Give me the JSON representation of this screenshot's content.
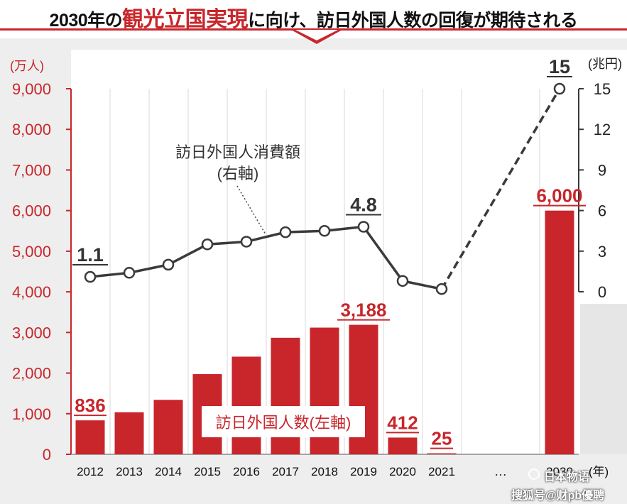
{
  "header": {
    "title_pre": "2030年の",
    "title_highlight": "観光立国実現",
    "title_post": "に向け、訪日外国人数の回復が期待される"
  },
  "watermark": {
    "line1": "日本物语",
    "line2": "搜狐号@财pb優聘"
  },
  "chart_data": {
    "type": "bar+line",
    "categories": [
      "2012",
      "2013",
      "2014",
      "2015",
      "2016",
      "2017",
      "2018",
      "2019",
      "2020",
      "2021",
      "…",
      "2030"
    ],
    "gap_marker": "…",
    "left_axis": {
      "unit": "(万人)",
      "min": 0,
      "max": 9000,
      "ticks": [
        0,
        1000,
        2000,
        3000,
        4000,
        5000,
        6000,
        7000,
        8000,
        9000
      ],
      "tick_labels": [
        "0",
        "1,000",
        "2,000",
        "3,000",
        "4,000",
        "5,000",
        "6,000",
        "7,000",
        "8,000",
        "9,000"
      ]
    },
    "right_axis": {
      "unit": "(兆円)",
      "min": 0,
      "max": 15,
      "ticks": [
        0,
        3,
        6,
        9,
        12,
        15
      ],
      "tick_labels": [
        "0",
        "3",
        "6",
        "9",
        "12",
        "15"
      ]
    },
    "x_unit": "(年)",
    "bars": {
      "name": "訪日外国人数(左軸)",
      "color": "#c8262b",
      "values": [
        836,
        1036,
        1341,
        1974,
        2404,
        2869,
        3119,
        3188,
        412,
        25,
        null,
        6000
      ],
      "labels": [
        {
          "index": 0,
          "text": "836"
        },
        {
          "index": 7,
          "text": "3,188"
        },
        {
          "index": 8,
          "text": "412"
        },
        {
          "index": 9,
          "text": "25"
        },
        {
          "index": 11,
          "text": "6,000"
        }
      ]
    },
    "line": {
      "name_line1": "訪日外国人消費額",
      "name_line2": "(右軸)",
      "color": "#3a3a3a",
      "values": [
        1.1,
        1.4,
        2.0,
        3.5,
        3.7,
        4.4,
        4.5,
        4.8,
        0.8,
        0.2,
        null,
        15
      ],
      "dashed_from": 9,
      "labels": [
        {
          "index": 0,
          "text": "1.1"
        },
        {
          "index": 7,
          "text": "4.8"
        },
        {
          "index": 11,
          "text": "15"
        }
      ]
    }
  }
}
